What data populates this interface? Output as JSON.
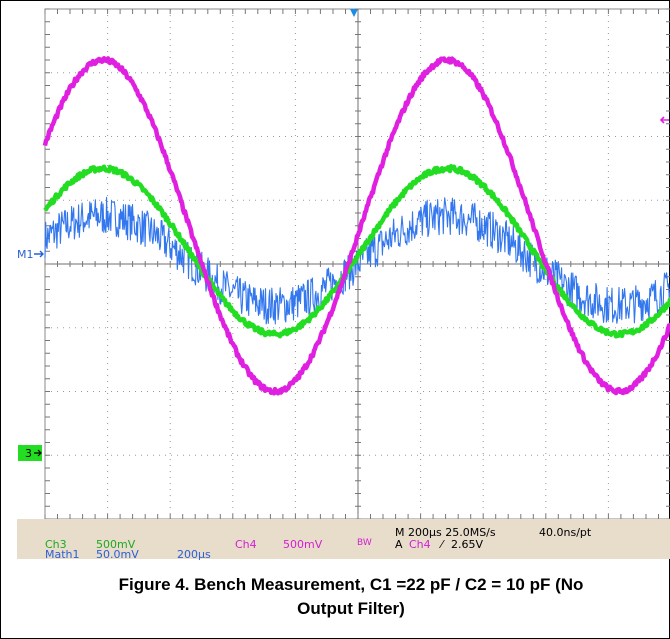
{
  "caption": {
    "line1": "Figure 4. Bench Measurement, C1 =22 pF / C2 = 10 pF (No",
    "line2": "Output Filter)"
  },
  "markers": {
    "m1": "M1",
    "ch3": "3"
  },
  "status": {
    "ch3_label": "Ch3",
    "ch3_scale": "500mV",
    "math1_label": "Math1",
    "math1_scale": "50.0mV",
    "math1_time": "200µs",
    "ch4_label": "Ch4",
    "ch4_scale": "500mV",
    "bw": "BW",
    "timebase": "M 200µs 25.0MS/s",
    "record": "40.0ns/pt",
    "trigger_prefix": "A",
    "trigger_ch": "Ch4",
    "trigger_slope": "⁄",
    "trigger_level": "2.65V"
  },
  "colors": {
    "ch3": "#22dd22",
    "ch4": "#e020e0",
    "math1": "#3377ee",
    "status_bg": "#e8dccb",
    "grid": "#888888"
  },
  "chart_data": {
    "type": "line",
    "grid": true,
    "x_divisions": 10,
    "y_divisions": 8,
    "xlim": [
      0,
      10
    ],
    "ylim": [
      -4,
      4
    ],
    "series": [
      {
        "name": "Ch4",
        "color": "#e020e0",
        "amplitude_div": 2.6,
        "offset_div": 0.6,
        "period_div": 5.5,
        "phase_div": -0.45,
        "noise_div": 0.04
      },
      {
        "name": "Ch3",
        "color": "#22dd22",
        "amplitude_div": 1.3,
        "offset_div": 0.2,
        "period_div": 5.5,
        "phase_div": -0.45,
        "noise_div": 0.04
      },
      {
        "name": "Math1",
        "color": "#3377ee",
        "amplitude_div": 0.7,
        "offset_div": 0.05,
        "period_div": 5.5,
        "phase_div": -0.45,
        "noise_div": 0.3
      }
    ]
  }
}
